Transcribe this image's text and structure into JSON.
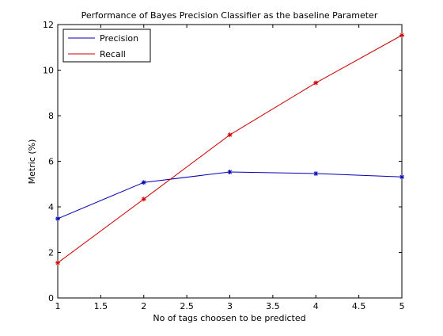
{
  "chart_data": {
    "type": "line",
    "title": "Performance of Bayes Precision Classifier as the baseline Parameter",
    "xlabel": "No of tags choosen to be predicted",
    "ylabel": "Metric (%)",
    "xlim": [
      1,
      5
    ],
    "ylim": [
      0,
      12
    ],
    "xticks": [
      1,
      1.5,
      2,
      2.5,
      3,
      3.5,
      4,
      4.5,
      5
    ],
    "xtick_labels": [
      "1",
      "1.5",
      "2",
      "2.5",
      "3",
      "3.5",
      "4",
      "4.5",
      "5"
    ],
    "yticks": [
      0,
      2,
      4,
      6,
      8,
      10,
      12
    ],
    "ytick_labels": [
      "0",
      "2",
      "4",
      "6",
      "8",
      "10",
      "12"
    ],
    "grid": false,
    "legend_position": "top-left",
    "x": [
      1,
      2,
      3,
      4,
      5
    ],
    "series": [
      {
        "name": "Precision",
        "color": "#0000b4",
        "marker": "asterisk",
        "values": [
          3.48,
          5.07,
          5.53,
          5.46,
          5.31
        ]
      },
      {
        "name": "Recall",
        "color": "#d00000",
        "marker": "asterisk",
        "values": [
          1.54,
          4.34,
          7.16,
          9.44,
          11.53
        ]
      }
    ]
  }
}
